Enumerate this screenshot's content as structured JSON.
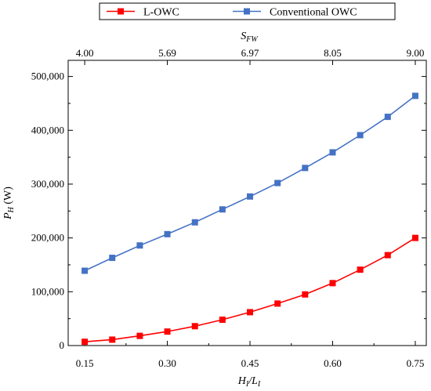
{
  "chart_data": {
    "type": "line",
    "title": "",
    "x": [
      0.15,
      0.2,
      0.25,
      0.3,
      0.35,
      0.4,
      0.45,
      0.5,
      0.55,
      0.6,
      0.65,
      0.7,
      0.75
    ],
    "xlim": [
      0.12,
      0.77
    ],
    "ylim": [
      0,
      530000
    ],
    "x_ticks": [
      0.15,
      0.3,
      0.45,
      0.6,
      0.75
    ],
    "x_tick_labels": [
      "0.15",
      "0.30",
      "0.45",
      "0.60",
      "0.75"
    ],
    "y_ticks": [
      0,
      100000,
      200000,
      300000,
      400000,
      500000
    ],
    "y_tick_labels": [
      "0",
      "100,000",
      "200,000",
      "300,000",
      "400,000",
      "500,000"
    ],
    "top_axis": {
      "label": "S_FW",
      "ticks_at_x": [
        0.15,
        0.3,
        0.45,
        0.6,
        0.75
      ],
      "tick_labels": [
        "4.00",
        "5.69",
        "6.97",
        "8.05",
        "9.00"
      ]
    },
    "xlabel": "H_I/L_I",
    "ylabel": "P_H (W)",
    "series": [
      {
        "name": "L-OWC",
        "color": "#ff0000",
        "marker": "square",
        "values": [
          7000,
          11000,
          18000,
          26000,
          36000,
          48000,
          62000,
          78000,
          95000,
          116000,
          141000,
          168000,
          200000
        ]
      },
      {
        "name": "Conventional OWC",
        "color": "#4472c4",
        "marker": "square",
        "values": [
          139000,
          163000,
          186000,
          207000,
          229000,
          253000,
          277000,
          302000,
          330000,
          359000,
          391000,
          425000,
          464000
        ]
      }
    ],
    "legend_placement": "top",
    "grid": false
  }
}
